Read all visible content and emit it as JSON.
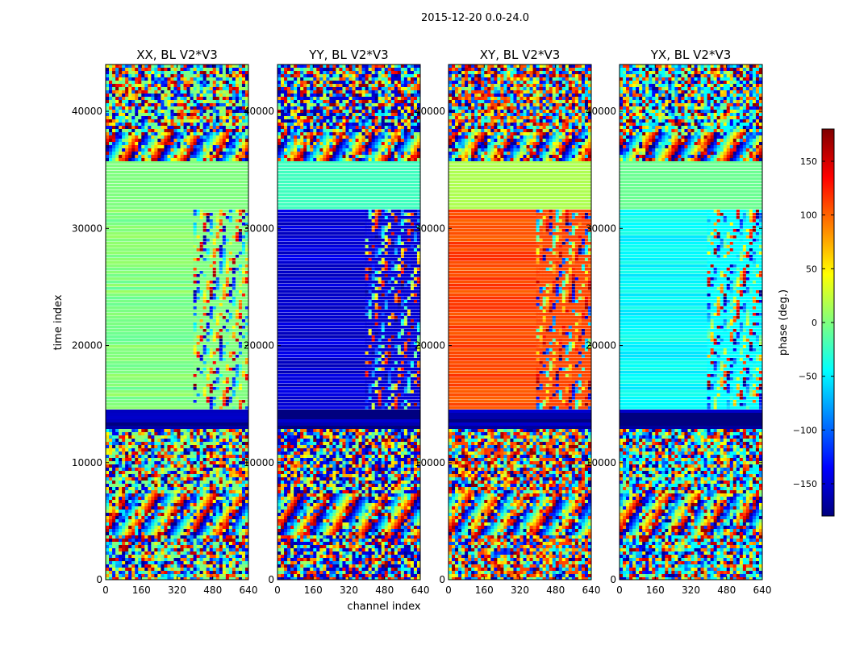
{
  "chart_data": {
    "type": "heatmap",
    "suptitle": "2015-12-20 0.0-24.0",
    "xlabel": "channel index",
    "ylabel": "time index",
    "xlim": [
      0,
      640
    ],
    "ylim": [
      0,
      44000
    ],
    "xticks": [
      0,
      160,
      320,
      480,
      640
    ],
    "yticks": [
      0,
      10000,
      20000,
      30000,
      40000
    ],
    "colorbar": {
      "label": "phase (deg.)",
      "range": [
        -180,
        180
      ],
      "ticks": [
        150,
        100,
        50,
        0,
        -50,
        -100,
        -150
      ],
      "tick_labels": [
        "150",
        "100",
        "50",
        "0",
        "−50",
        "−100",
        "−150"
      ],
      "colormap": "jet",
      "colors": [
        "#00007f",
        "#0000ff",
        "#007fff",
        "#00ffff",
        "#7fff7f",
        "#ffff00",
        "#ff7f00",
        "#ff0000",
        "#7f0000"
      ]
    },
    "panels": [
      {
        "title": "XX, BL V2*V3",
        "flat_phase": 0,
        "stripe_start": 400,
        "noise": 0.85
      },
      {
        "title": "YY, BL V2*V3",
        "flat_phase": -150,
        "stripe_start": 400,
        "noise": 0.85
      },
      {
        "title": "XY, BL V2*V3",
        "flat_phase": 110,
        "stripe_start": 400,
        "noise": 0.85
      },
      {
        "title": "YX, BL V2*V3",
        "flat_phase": -45,
        "stripe_start": 400,
        "noise": 0.85
      }
    ],
    "time_segments": [
      {
        "from": 0,
        "to": 3800,
        "kind": "noisy"
      },
      {
        "from": 3800,
        "to": 7500,
        "kind": "fringes"
      },
      {
        "from": 7500,
        "to": 13000,
        "kind": "noisy"
      },
      {
        "from": 13000,
        "to": 14500,
        "kind": "flagged"
      },
      {
        "from": 14500,
        "to": 31700,
        "kind": "flat_with_fringes"
      },
      {
        "from": 31700,
        "to": 35700,
        "kind": "flat"
      },
      {
        "from": 35700,
        "to": 38200,
        "kind": "fringes"
      },
      {
        "from": 38200,
        "to": 44000,
        "kind": "noisy"
      }
    ]
  }
}
